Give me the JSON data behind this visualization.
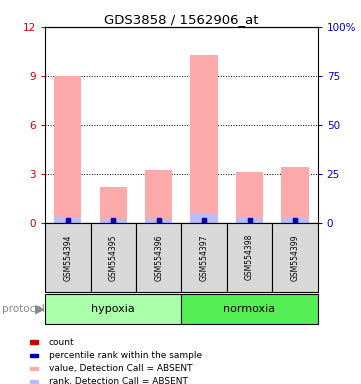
{
  "title": "GDS3858 / 1562906_at",
  "samples": [
    "GSM554394",
    "GSM554395",
    "GSM554396",
    "GSM554397",
    "GSM554398",
    "GSM554399"
  ],
  "bar_values": [
    9.0,
    2.2,
    3.2,
    10.3,
    3.1,
    3.4
  ],
  "rank_values": [
    0.35,
    0.25,
    0.25,
    0.55,
    0.3,
    0.3
  ],
  "bar_color": "#ffaaaa",
  "rank_color": "#bbbbff",
  "count_color": "#cc0000",
  "percentile_color": "#0000bb",
  "ylim_left": [
    0,
    12
  ],
  "ylim_right": [
    0,
    100
  ],
  "yticks_left": [
    0,
    3,
    6,
    9,
    12
  ],
  "yticks_right": [
    0,
    25,
    50,
    75,
    100
  ],
  "yticklabels_right": [
    "0",
    "25",
    "50",
    "75",
    "100%"
  ],
  "legend_items": [
    {
      "label": "count",
      "color": "#cc0000"
    },
    {
      "label": "percentile rank within the sample",
      "color": "#0000bb"
    },
    {
      "label": "value, Detection Call = ABSENT",
      "color": "#ffaaaa"
    },
    {
      "label": "rank, Detection Call = ABSENT",
      "color": "#bbbbff"
    }
  ],
  "hypoxia_color": "#aaffaa",
  "normoxia_color": "#55ee55",
  "sample_box_color": "#d8d8d8",
  "axis_color_left": "#cc0000",
  "axis_color_right": "#0000bb",
  "background_color": "#ffffff",
  "bar_width": 0.6
}
